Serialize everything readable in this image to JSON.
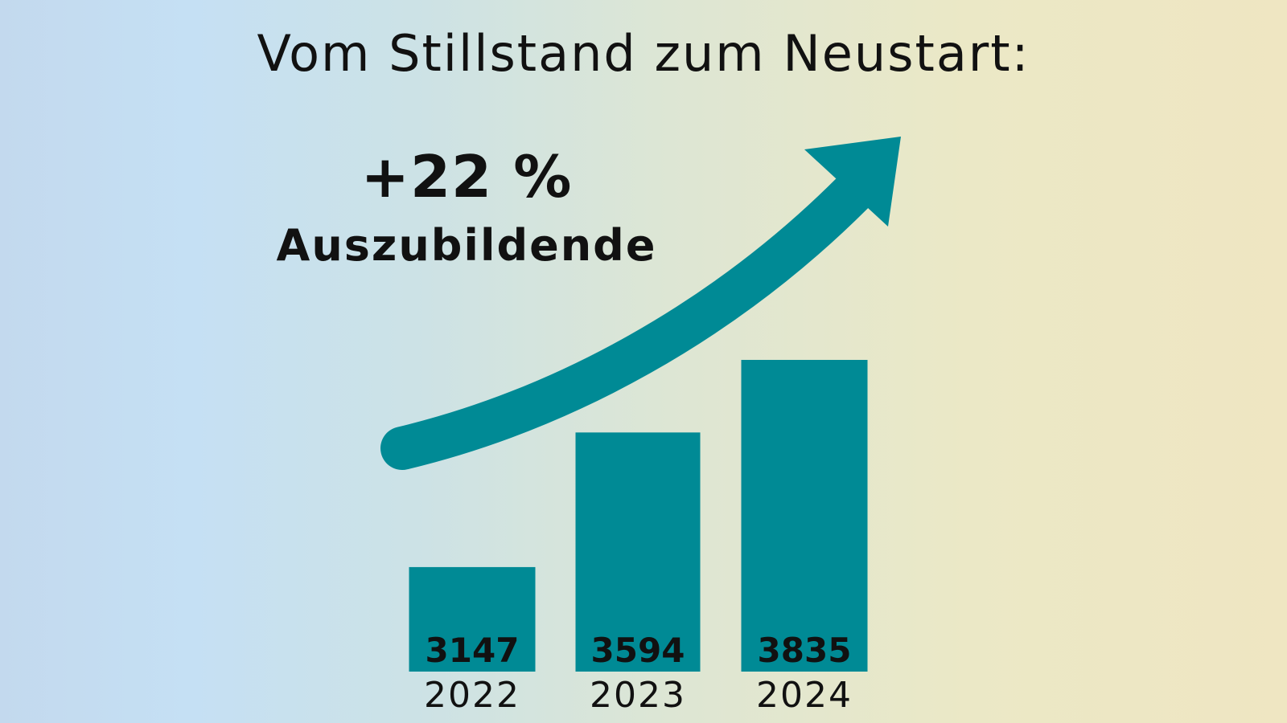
{
  "title": "Vom Stillstand zum Neustart:",
  "highlight": {
    "change": "+22 %",
    "label": "Auszubildende"
  },
  "colors": {
    "bar": "#008a95",
    "arrow": "#008a95",
    "text": "#111111"
  },
  "chart_data": {
    "type": "bar",
    "title": "Vom Stillstand zum Neustart:",
    "xlabel": "",
    "ylabel": "",
    "categories": [
      "2022",
      "2023",
      "2024"
    ],
    "values": [
      3147,
      3594,
      3835
    ],
    "data_labels": [
      "3147",
      "3594",
      "3835"
    ],
    "annotation": "+22 % Auszubildende",
    "trend_arrow": "upward, teal",
    "grid": false,
    "legend": "none"
  }
}
